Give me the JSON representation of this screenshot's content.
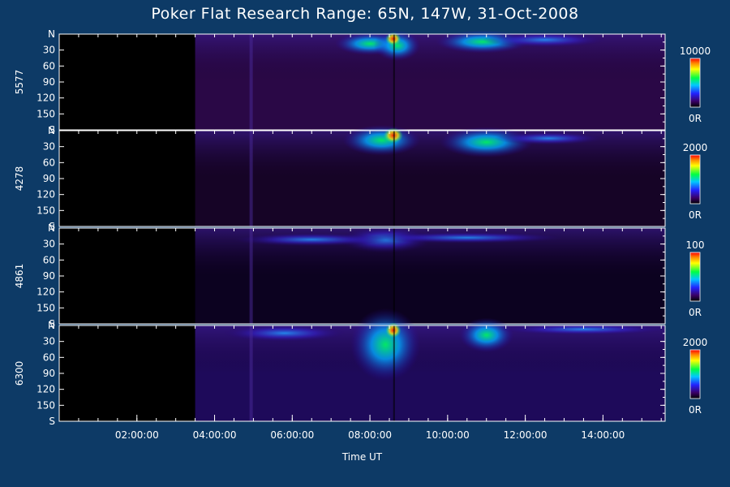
{
  "chart_data": {
    "type": "heatmap",
    "title": "Poker Flat Research Range: 65N, 147W, 31-Oct-2008",
    "xlabel": "Time UT",
    "x_range_hours": [
      0.0,
      15.6
    ],
    "x_ticks": [
      "02:00:00",
      "04:00:00",
      "06:00:00",
      "08:00:00",
      "10:00:00",
      "12:00:00",
      "14:00:00"
    ],
    "x_tick_hours": [
      2,
      4,
      6,
      8,
      10,
      12,
      14
    ],
    "y_ticks": [
      "N",
      "30",
      "60",
      "90",
      "120",
      "150",
      "S"
    ],
    "y_range_deg": [
      0,
      180
    ],
    "data_start_hour": 3.5,
    "panels": [
      {
        "name": "5577",
        "colorbar_max": "10000",
        "colorbar_min": "0R"
      },
      {
        "name": "4278",
        "colorbar_max": "2000",
        "colorbar_min": "0R"
      },
      {
        "name": "4861",
        "colorbar_max": "100",
        "colorbar_min": "0R"
      },
      {
        "name": "6300",
        "colorbar_max": "2000",
        "colorbar_min": "0R"
      }
    ]
  }
}
